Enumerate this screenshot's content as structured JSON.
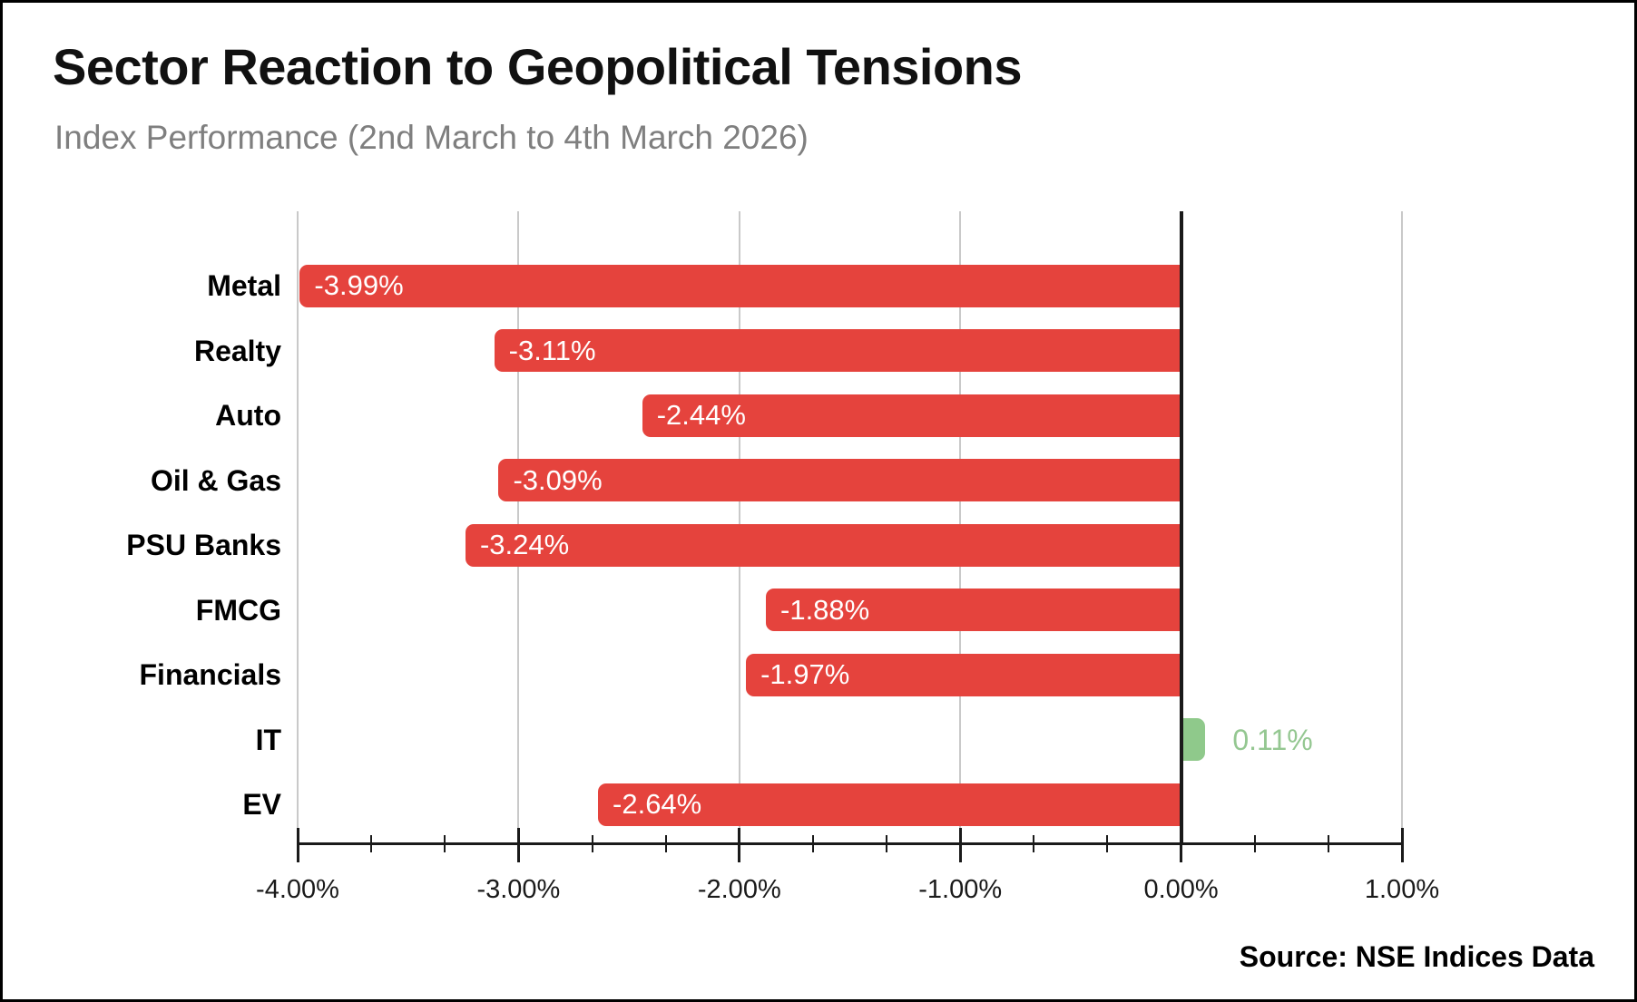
{
  "header": {
    "title": "Sector Reaction to Geopolitical Tensions",
    "subtitle": "Index Performance (2nd March to 4th March 2026)"
  },
  "footer": {
    "source": "Source: NSE Indices Data"
  },
  "chart_data": {
    "type": "bar",
    "orientation": "horizontal",
    "title": "Sector Reaction to Geopolitical Tensions",
    "subtitle": "Index Performance (2nd March to 4th March 2026)",
    "source": "Source: NSE Indices Data",
    "categories": [
      "Metal",
      "Realty",
      "Auto",
      "Oil & Gas",
      "PSU Banks",
      "FMCG",
      "Financials",
      "IT",
      "EV"
    ],
    "values": [
      -3.99,
      -3.11,
      -2.44,
      -3.09,
      -3.24,
      -1.88,
      -1.97,
      0.11,
      -2.64
    ],
    "labels": [
      "-3.99%",
      "-3.11%",
      "-2.44%",
      "-3.09%",
      "-3.24%",
      "-1.88%",
      "-1.97%",
      "0.11%",
      "-2.64%"
    ],
    "xlim": [
      -4,
      1
    ],
    "x_tick_values": [
      -4,
      -3,
      -2,
      -1,
      0,
      1
    ],
    "x_tick_labels": [
      "-4.00%",
      "-3.00%",
      "-2.00%",
      "-1.00%",
      "0.00%",
      "1.00%"
    ],
    "minor_ticks_per_interval": 2,
    "grid": "vertical gridlines at major ticks, black line at zero",
    "legend": "none",
    "value_label_position": "inside-left for negative (white), outside-right for positive (green)",
    "colors": {
      "negative": "#e5433d",
      "positive": "#8fc98b",
      "positive_label": "#94c791",
      "grid": "#c9c9c9",
      "axis": "#1a1a1a",
      "title": "#111111",
      "subtitle": "#7f7f7f",
      "bar_label": "#ffffff"
    }
  }
}
